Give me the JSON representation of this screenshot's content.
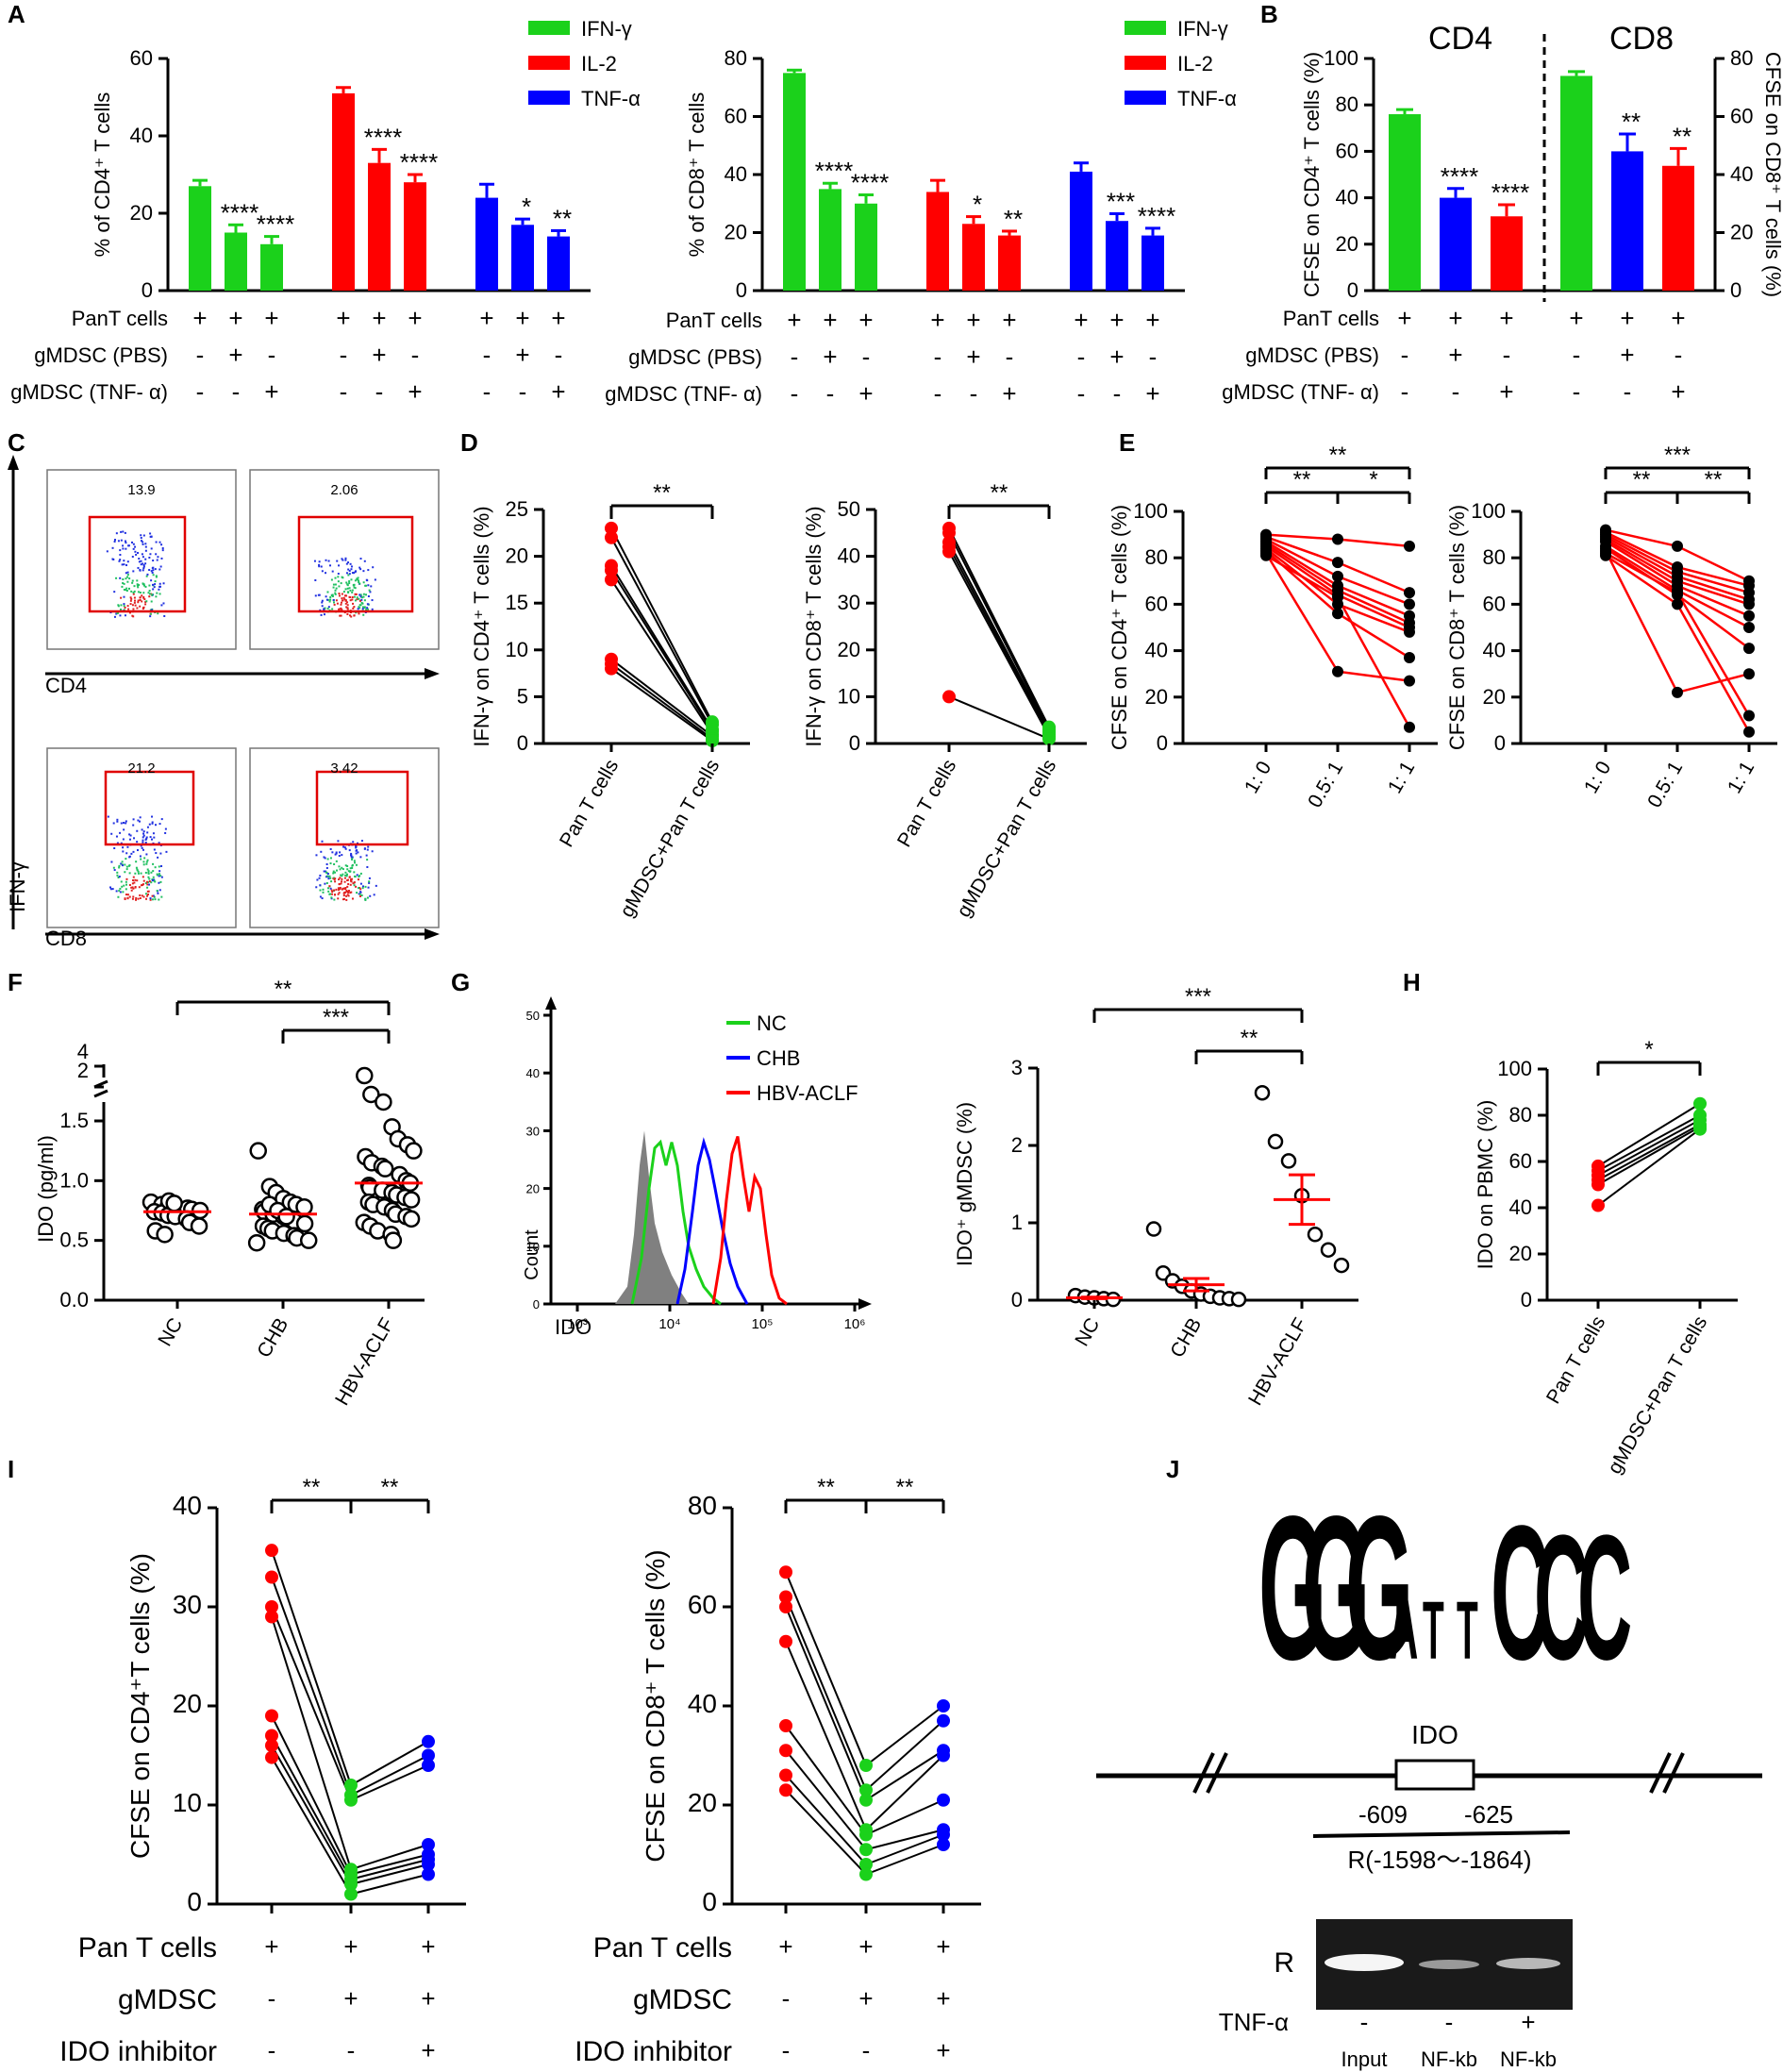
{
  "colors": {
    "ifng": "#1bd11b",
    "il2": "#ff0000",
    "tnfa": "#0000ff",
    "black": "#000000",
    "gray": "#808080"
  },
  "panels": {
    "A": "A",
    "B": "B",
    "C": "C",
    "D": "D",
    "E": "E",
    "F": "F",
    "G": "G",
    "H": "H",
    "I": "I",
    "J": "J"
  },
  "legend": {
    "ifng": "IFN-γ",
    "il2": "IL-2",
    "tnfa": "TNF-α"
  },
  "conditions_A": {
    "row_labels": [
      "PanT cells",
      "gMDSC (PBS)",
      "gMDSC (TNF- α)"
    ],
    "signs": [
      [
        "+",
        "+",
        "+"
      ],
      [
        "-",
        "+",
        "-"
      ],
      [
        "-",
        "-",
        "+"
      ]
    ]
  },
  "chart_data": [
    {
      "id": "A-left",
      "type": "bar",
      "ylabel": "% of CD4⁺ T cells",
      "ylim": [
        0,
        60
      ],
      "yticks": [
        "0",
        "20",
        "40",
        "60"
      ],
      "series": [
        {
          "name": "IFN-γ",
          "values": [
            27,
            15,
            12
          ],
          "errors": [
            1.5,
            2,
            2
          ],
          "stars": [
            "",
            "****",
            "****"
          ]
        },
        {
          "name": "IL-2",
          "values": [
            51,
            33,
            28
          ],
          "errors": [
            1.5,
            3.5,
            2
          ],
          "stars": [
            "",
            "****",
            "****"
          ]
        },
        {
          "name": "TNF-α",
          "values": [
            24,
            17,
            14
          ],
          "errors": [
            3.5,
            1.5,
            1.5
          ],
          "stars": [
            "",
            "*",
            "**"
          ]
        }
      ]
    },
    {
      "id": "A-right",
      "type": "bar",
      "ylabel": "% of CD8⁺ T cells",
      "ylim": [
        0,
        80
      ],
      "yticks": [
        "0",
        "20",
        "40",
        "60",
        "80"
      ],
      "series": [
        {
          "name": "IFN-γ",
          "values": [
            75,
            35,
            30
          ],
          "errors": [
            1,
            2,
            3
          ],
          "stars": [
            "",
            "****",
            "****"
          ]
        },
        {
          "name": "IL-2",
          "values": [
            34,
            23,
            19
          ],
          "errors": [
            4,
            2.5,
            1.5
          ],
          "stars": [
            "",
            "*",
            "**"
          ]
        },
        {
          "name": "TNF-α",
          "values": [
            41,
            24,
            19
          ],
          "errors": [
            3,
            2.5,
            2.5
          ],
          "stars": [
            "",
            "***",
            "****"
          ]
        }
      ]
    },
    {
      "id": "B",
      "type": "bar",
      "title_left": "CD4",
      "title_right": "CD8",
      "ylabel_left": "CFSE on CD4⁺ T cells (%)",
      "ylabel_right": "CFSE on CD8⁺ T cells (%)",
      "ylim_left": [
        0,
        100
      ],
      "yticks_left": [
        "0",
        "20",
        "40",
        "60",
        "80",
        "100"
      ],
      "ylim_right": [
        0,
        80
      ],
      "yticks_right": [
        "0",
        "20",
        "40",
        "60",
        "80"
      ],
      "cd4": {
        "values": [
          76,
          40,
          32
        ],
        "errors": [
          2,
          4,
          5
        ],
        "stars": [
          "",
          "****",
          "****"
        ]
      },
      "cd8": {
        "values": [
          74,
          48,
          43
        ],
        "errors": [
          1.5,
          6,
          6
        ],
        "stars": [
          "",
          "**",
          "**"
        ]
      }
    },
    {
      "id": "C",
      "type": "scatter",
      "subtype": "flow-cytometry",
      "values": [
        "13.9",
        "2.06",
        "21.2",
        "3.42"
      ],
      "xlabels": [
        "CD4",
        "CD8"
      ],
      "ylabel": "IFN-γ"
    },
    {
      "id": "D-left",
      "type": "scatter",
      "ylabel": "IFN-γ on CD4⁺ T cells (%)",
      "ylim": [
        0,
        25
      ],
      "yticks": [
        "0",
        "5",
        "10",
        "15",
        "20",
        "25"
      ],
      "categories": [
        "Pan T cells",
        "gMDSC+Pan T cells"
      ],
      "pairs": [
        [
          23,
          2.3
        ],
        [
          22,
          2
        ],
        [
          19,
          1.5
        ],
        [
          18.5,
          1.3
        ],
        [
          17.5,
          1
        ],
        [
          9,
          0.8
        ],
        [
          8.5,
          0.5
        ],
        [
          8,
          0.3
        ]
      ],
      "sig": "**"
    },
    {
      "id": "D-right",
      "type": "scatter",
      "ylabel": "IFN-γ on CD8⁺ T cells (%)",
      "ylim": [
        0,
        50
      ],
      "yticks": [
        "0",
        "10",
        "20",
        "30",
        "40",
        "50"
      ],
      "categories": [
        "Pan T cells",
        "gMDSC+Pan T cells"
      ],
      "pairs": [
        [
          46,
          3.5
        ],
        [
          45,
          3
        ],
        [
          43,
          2.5
        ],
        [
          42,
          2
        ],
        [
          41,
          1.5
        ],
        [
          10,
          1
        ]
      ],
      "sig": "**"
    },
    {
      "id": "E-left",
      "type": "line",
      "ylabel": "CFSE on CD4⁺ T cells (%)",
      "ylim": [
        0,
        100
      ],
      "yticks": [
        "0",
        "20",
        "40",
        "60",
        "80",
        "100"
      ],
      "categories": [
        "1: 0",
        "0.5: 1",
        "1: 1"
      ],
      "lines": [
        [
          90,
          88,
          85
        ],
        [
          89,
          78,
          65
        ],
        [
          88,
          72,
          60
        ],
        [
          87,
          68,
          55
        ],
        [
          86,
          66,
          52
        ],
        [
          85,
          64,
          50
        ],
        [
          84,
          60,
          48
        ],
        [
          83,
          56,
          37
        ],
        [
          82,
          31,
          27
        ],
        [
          81,
          63,
          7
        ]
      ],
      "sig": [
        {
          "from": 0,
          "to": 1,
          "label": "**",
          "level": 1
        },
        {
          "from": 1,
          "to": 2,
          "label": "*",
          "level": 1
        },
        {
          "from": 0,
          "to": 2,
          "label": "**",
          "level": 2
        }
      ]
    },
    {
      "id": "E-right",
      "type": "line",
      "ylabel": "CFSE on CD8⁺ T cells (%)",
      "ylim": [
        0,
        100
      ],
      "yticks": [
        "0",
        "20",
        "40",
        "60",
        "80",
        "100"
      ],
      "categories": [
        "1: 0",
        "0.5: 1",
        "1: 1"
      ],
      "lines": [
        [
          92,
          85,
          70
        ],
        [
          91,
          76,
          68
        ],
        [
          90,
          74,
          65
        ],
        [
          89,
          72,
          62
        ],
        [
          88,
          70,
          60
        ],
        [
          87,
          68,
          55
        ],
        [
          85,
          66,
          50
        ],
        [
          84,
          64,
          41
        ],
        [
          83,
          22,
          30
        ],
        [
          82,
          65,
          12
        ],
        [
          81,
          60,
          5
        ]
      ],
      "sig": [
        {
          "from": 0,
          "to": 1,
          "label": "**",
          "level": 1
        },
        {
          "from": 1,
          "to": 2,
          "label": "**",
          "level": 1
        },
        {
          "from": 0,
          "to": 2,
          "label": "***",
          "level": 2
        }
      ]
    },
    {
      "id": "F",
      "type": "scatter",
      "ylabel": "IDO (pg/ml)",
      "categories": [
        "NC",
        "CHB",
        "HBV-ACLF"
      ],
      "yticks_low": [
        "0.0",
        "0.5",
        "1.0",
        "1.5"
      ],
      "yticks_high": [
        "2",
        "4"
      ],
      "groups": [
        {
          "mean": 0.74,
          "points": [
            0.82,
            0.8,
            0.79,
            0.78,
            0.77,
            0.76,
            0.75,
            0.74,
            0.73,
            0.71,
            0.7,
            0.68,
            0.65,
            0.62,
            0.58,
            0.55,
            0.83,
            0.81
          ]
        },
        {
          "mean": 0.72,
          "points": [
            1.25,
            0.95,
            0.9,
            0.85,
            0.82,
            0.8,
            0.78,
            0.76,
            0.74,
            0.72,
            0.7,
            0.68,
            0.66,
            0.64,
            0.62,
            0.6,
            0.58,
            0.56,
            0.54,
            0.52,
            0.5,
            0.48,
            0.8,
            0.75,
            0.7
          ]
        },
        {
          "mean": 0.98,
          "points": [
            2.6,
            2.2,
            1.7,
            1.45,
            1.35,
            1.3,
            1.25,
            1.2,
            1.15,
            1.12,
            1.1,
            1.05,
            1.0,
            0.98,
            0.96,
            0.94,
            0.92,
            0.9,
            0.88,
            0.86,
            0.84,
            0.82,
            0.8,
            0.78,
            0.75,
            0.72,
            0.7,
            0.68,
            0.65,
            0.62,
            0.58,
            0.55,
            0.5
          ]
        }
      ],
      "sig": [
        {
          "from": 1,
          "to": 2,
          "label": "***",
          "level": 1
        },
        {
          "from": 0,
          "to": 2,
          "label": "**",
          "level": 2
        }
      ]
    },
    {
      "id": "G-hist",
      "type": "area",
      "xlabel": "IDO",
      "ylabel": "Count",
      "yticks": [
        "0",
        "10",
        "20",
        "30",
        "40",
        "50"
      ],
      "xticks": [
        "10³",
        "10⁴",
        "10⁵",
        "10⁶"
      ],
      "legend": [
        "NC",
        "CHB",
        "HBV-ACLF"
      ]
    },
    {
      "id": "G-scatter",
      "type": "scatter",
      "ylabel": "IDO⁺ gMDSC (%)",
      "ylim": [
        0,
        3
      ],
      "yticks": [
        "0",
        "1",
        "2",
        "3"
      ],
      "categories": [
        "NC",
        "CHB",
        "HBV-ACLF"
      ],
      "groups": [
        {
          "mean": 0.03,
          "sem": 0.01,
          "points": [
            0.06,
            0.04,
            0.03,
            0.02,
            0.01
          ]
        },
        {
          "mean": 0.2,
          "sem": 0.08,
          "points": [
            0.92,
            0.35,
            0.25,
            0.18,
            0.12,
            0.08,
            0.05,
            0.03,
            0.02,
            0.01
          ]
        },
        {
          "mean": 1.3,
          "sem": 0.32,
          "points": [
            2.68,
            2.05,
            1.8,
            1.35,
            0.85,
            0.65,
            0.45
          ]
        }
      ],
      "sig": [
        {
          "from": 1,
          "to": 2,
          "label": "**",
          "level": 1
        },
        {
          "from": 0,
          "to": 2,
          "label": "***",
          "level": 2
        }
      ]
    },
    {
      "id": "H",
      "type": "scatter",
      "ylabel": "IDO on PBMC (%)",
      "ylim": [
        0,
        100
      ],
      "yticks": [
        "0",
        "20",
        "40",
        "60",
        "80",
        "100"
      ],
      "categories": [
        "Pan T cells",
        "gMDSC+Pan T cells"
      ],
      "pairs": [
        [
          58,
          85
        ],
        [
          56,
          80
        ],
        [
          54,
          78
        ],
        [
          52,
          76
        ],
        [
          50,
          75
        ],
        [
          41,
          74
        ]
      ],
      "sig": "*"
    },
    {
      "id": "I-left",
      "type": "line",
      "ylabel": "CFSE on CD4⁺T cells (%)",
      "ylim": [
        0,
        40
      ],
      "yticks": [
        "0",
        "10",
        "20",
        "30",
        "40"
      ],
      "lines": [
        [
          35.7,
          12,
          16.4
        ],
        [
          33,
          11,
          15
        ],
        [
          30,
          10.5,
          14
        ],
        [
          29,
          3.5,
          6
        ],
        [
          19,
          3,
          5
        ],
        [
          17,
          2.5,
          4.5
        ],
        [
          16,
          2,
          4
        ],
        [
          14.8,
          1,
          3
        ]
      ],
      "sig": [
        {
          "from": 0,
          "to": 1,
          "label": "**"
        },
        {
          "from": 1,
          "to": 2,
          "label": "**"
        }
      ]
    },
    {
      "id": "I-right",
      "type": "line",
      "ylabel": "CFSE on CD8⁺ T cells (%)",
      "ylim": [
        0,
        80
      ],
      "yticks": [
        "0",
        "20",
        "40",
        "60",
        "80"
      ],
      "lines": [
        [
          67,
          28,
          40
        ],
        [
          62,
          23,
          37
        ],
        [
          60,
          21,
          31
        ],
        [
          53,
          15,
          30
        ],
        [
          36,
          14,
          21
        ],
        [
          31,
          11,
          15
        ],
        [
          26,
          8,
          14
        ],
        [
          23,
          6,
          12
        ]
      ],
      "sig": [
        {
          "from": 0,
          "to": 1,
          "label": "**"
        },
        {
          "from": 1,
          "to": 2,
          "label": "**"
        }
      ]
    }
  ],
  "conditions_I": {
    "row_labels": [
      "Pan T cells",
      "gMDSC",
      "IDO inhibitor"
    ],
    "signs": [
      [
        "+",
        "+",
        "+"
      ],
      [
        "-",
        "+",
        "+"
      ],
      [
        "-",
        "-",
        "+"
      ]
    ]
  },
  "panelJ": {
    "logo_letters": [
      "G",
      "G",
      "G",
      "A",
      "T",
      "T",
      "C",
      "C",
      "C"
    ],
    "gene": "IDO",
    "pos1": "-609",
    "pos2": "-625",
    "region": "R(-1598～-1864)",
    "gel_row": "R",
    "tnf_label": "TNF-α",
    "tnf_signs": [
      "-",
      "-",
      "+"
    ],
    "lanes": [
      "Input",
      "NF-kb",
      "NF-kb"
    ]
  }
}
